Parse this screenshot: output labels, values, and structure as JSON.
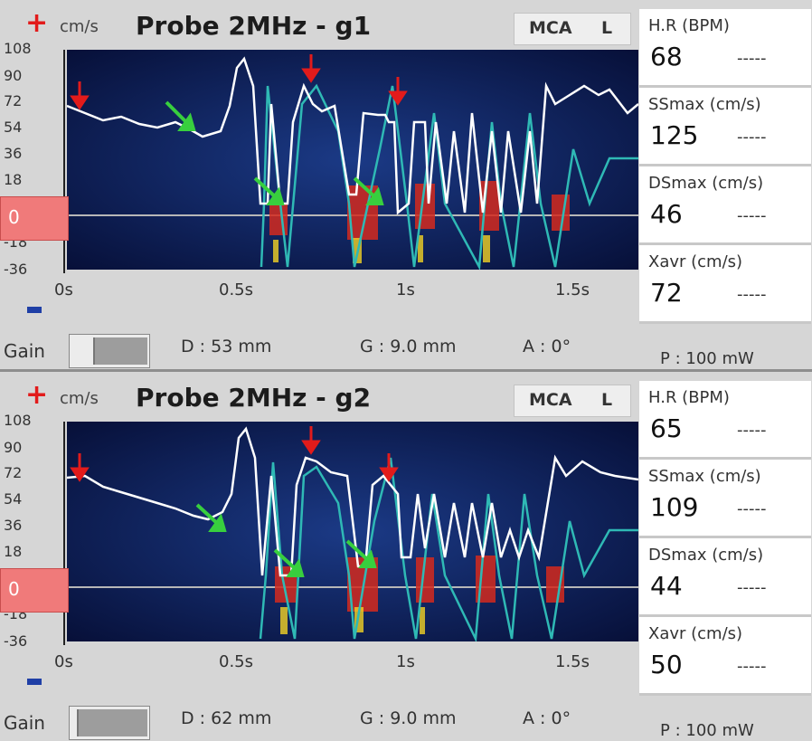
{
  "colors": {
    "accent_red": "#e21b1b",
    "spectrum_bg": "#08133d",
    "trace_white": "#ffffff",
    "trace_cyan": "#2fb9b5",
    "zero_box": "#f07a7a",
    "stat_bg": "#ffffff"
  },
  "panels": [
    {
      "unit": "cm/s",
      "probe_label": "Probe 2MHz - g1",
      "vessel": "MCA",
      "side": "L",
      "y_ticks": [
        "108",
        "90",
        "72",
        "54",
        "36",
        "18",
        "-18",
        "-36"
      ],
      "x_ticks": [
        "0s",
        "0.5s",
        "1s",
        "1.5s"
      ],
      "zero_label": "0",
      "gain_label": "Gain",
      "gain_level": 0.35,
      "depth": "D : 53 mm",
      "gate": "G : 9.0 mm",
      "angle": "A : 0°",
      "power": "P : 100 mW",
      "stats": [
        {
          "label": "H.R (BPM)",
          "value": "68",
          "extra": "-----"
        },
        {
          "label": "SSmax (cm/s)",
          "value": "125",
          "extra": "-----"
        },
        {
          "label": "DSmax (cm/s)",
          "value": "46",
          "extra": "-----"
        },
        {
          "label": "Xavr (cm/s)",
          "value": "72",
          "extra": "-----"
        }
      ]
    },
    {
      "unit": "cm/s",
      "probe_label": "Probe 2MHz - g2",
      "vessel": "MCA",
      "side": "L",
      "y_ticks": [
        "108",
        "90",
        "72",
        "54",
        "36",
        "18",
        "-18",
        "-36"
      ],
      "x_ticks": [
        "0s",
        "0.5s",
        "1s",
        "1.5s"
      ],
      "zero_label": "0",
      "gain_label": "Gain",
      "gain_level": 0.1,
      "depth": "D : 62 mm",
      "gate": "G : 9.0 mm",
      "angle": "A : 0°",
      "power": "P : 100 mW",
      "stats": [
        {
          "label": "H.R (BPM)",
          "value": "65",
          "extra": "-----"
        },
        {
          "label": "SSmax (cm/s)",
          "value": "109",
          "extra": "-----"
        },
        {
          "label": "DSmax (cm/s)",
          "value": "44",
          "extra": "-----"
        },
        {
          "label": "Xavr (cm/s)",
          "value": "50",
          "extra": "-----"
        }
      ]
    }
  ]
}
